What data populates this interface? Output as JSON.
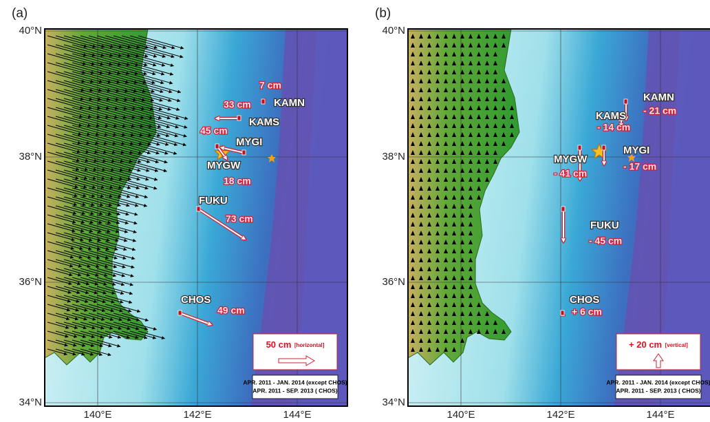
{
  "panels": [
    {
      "label": "(a)",
      "lat_ticks": [
        "40°N",
        "38°N",
        "36°N",
        "34°N"
      ],
      "lon_ticks": [
        "140°E",
        "142°E",
        "144°E"
      ],
      "stations": [
        {
          "name": "KAMN",
          "displacement": "7 cm"
        },
        {
          "name": "KAMS",
          "displacement": "33 cm"
        },
        {
          "name": "MYGI",
          "displacement": "45 cm"
        },
        {
          "name": "MYGW",
          "displacement": "18 cm"
        },
        {
          "name": "FUKU",
          "displacement": "73 cm"
        },
        {
          "name": "CHOS",
          "displacement": "49 cm"
        }
      ],
      "scale": {
        "value": "50 cm",
        "qualifier": "[horizontal]"
      },
      "periods": [
        "APR. 2011 - JAN. 2014 (except CHOS)",
        "APR. 2011 - SEP. 2013 ( CHOS)"
      ]
    },
    {
      "label": "(b)",
      "lat_ticks": [
        "40°N",
        "38°N",
        "36°N",
        "34°N"
      ],
      "lon_ticks": [
        "140°E",
        "142°E",
        "144°E"
      ],
      "stations": [
        {
          "name": "KAMN",
          "displacement": "- 21 cm"
        },
        {
          "name": "KAMS",
          "displacement": "- 14 cm"
        },
        {
          "name": "MYGI",
          "displacement": "- 17 cm"
        },
        {
          "name": "MYGW",
          "displacement": "- 41 cm"
        },
        {
          "name": "FUKU",
          "displacement": "- 45 cm"
        },
        {
          "name": "CHOS",
          "displacement": "+ 6 cm"
        }
      ],
      "scale": {
        "value": "+ 20 cm",
        "qualifier": "[vertical]"
      },
      "periods": [
        "APR. 2011 - JAN. 2014 (except CHOS)",
        "APR. 2011 - SEP. 2013 ( CHOS)"
      ]
    }
  ]
}
